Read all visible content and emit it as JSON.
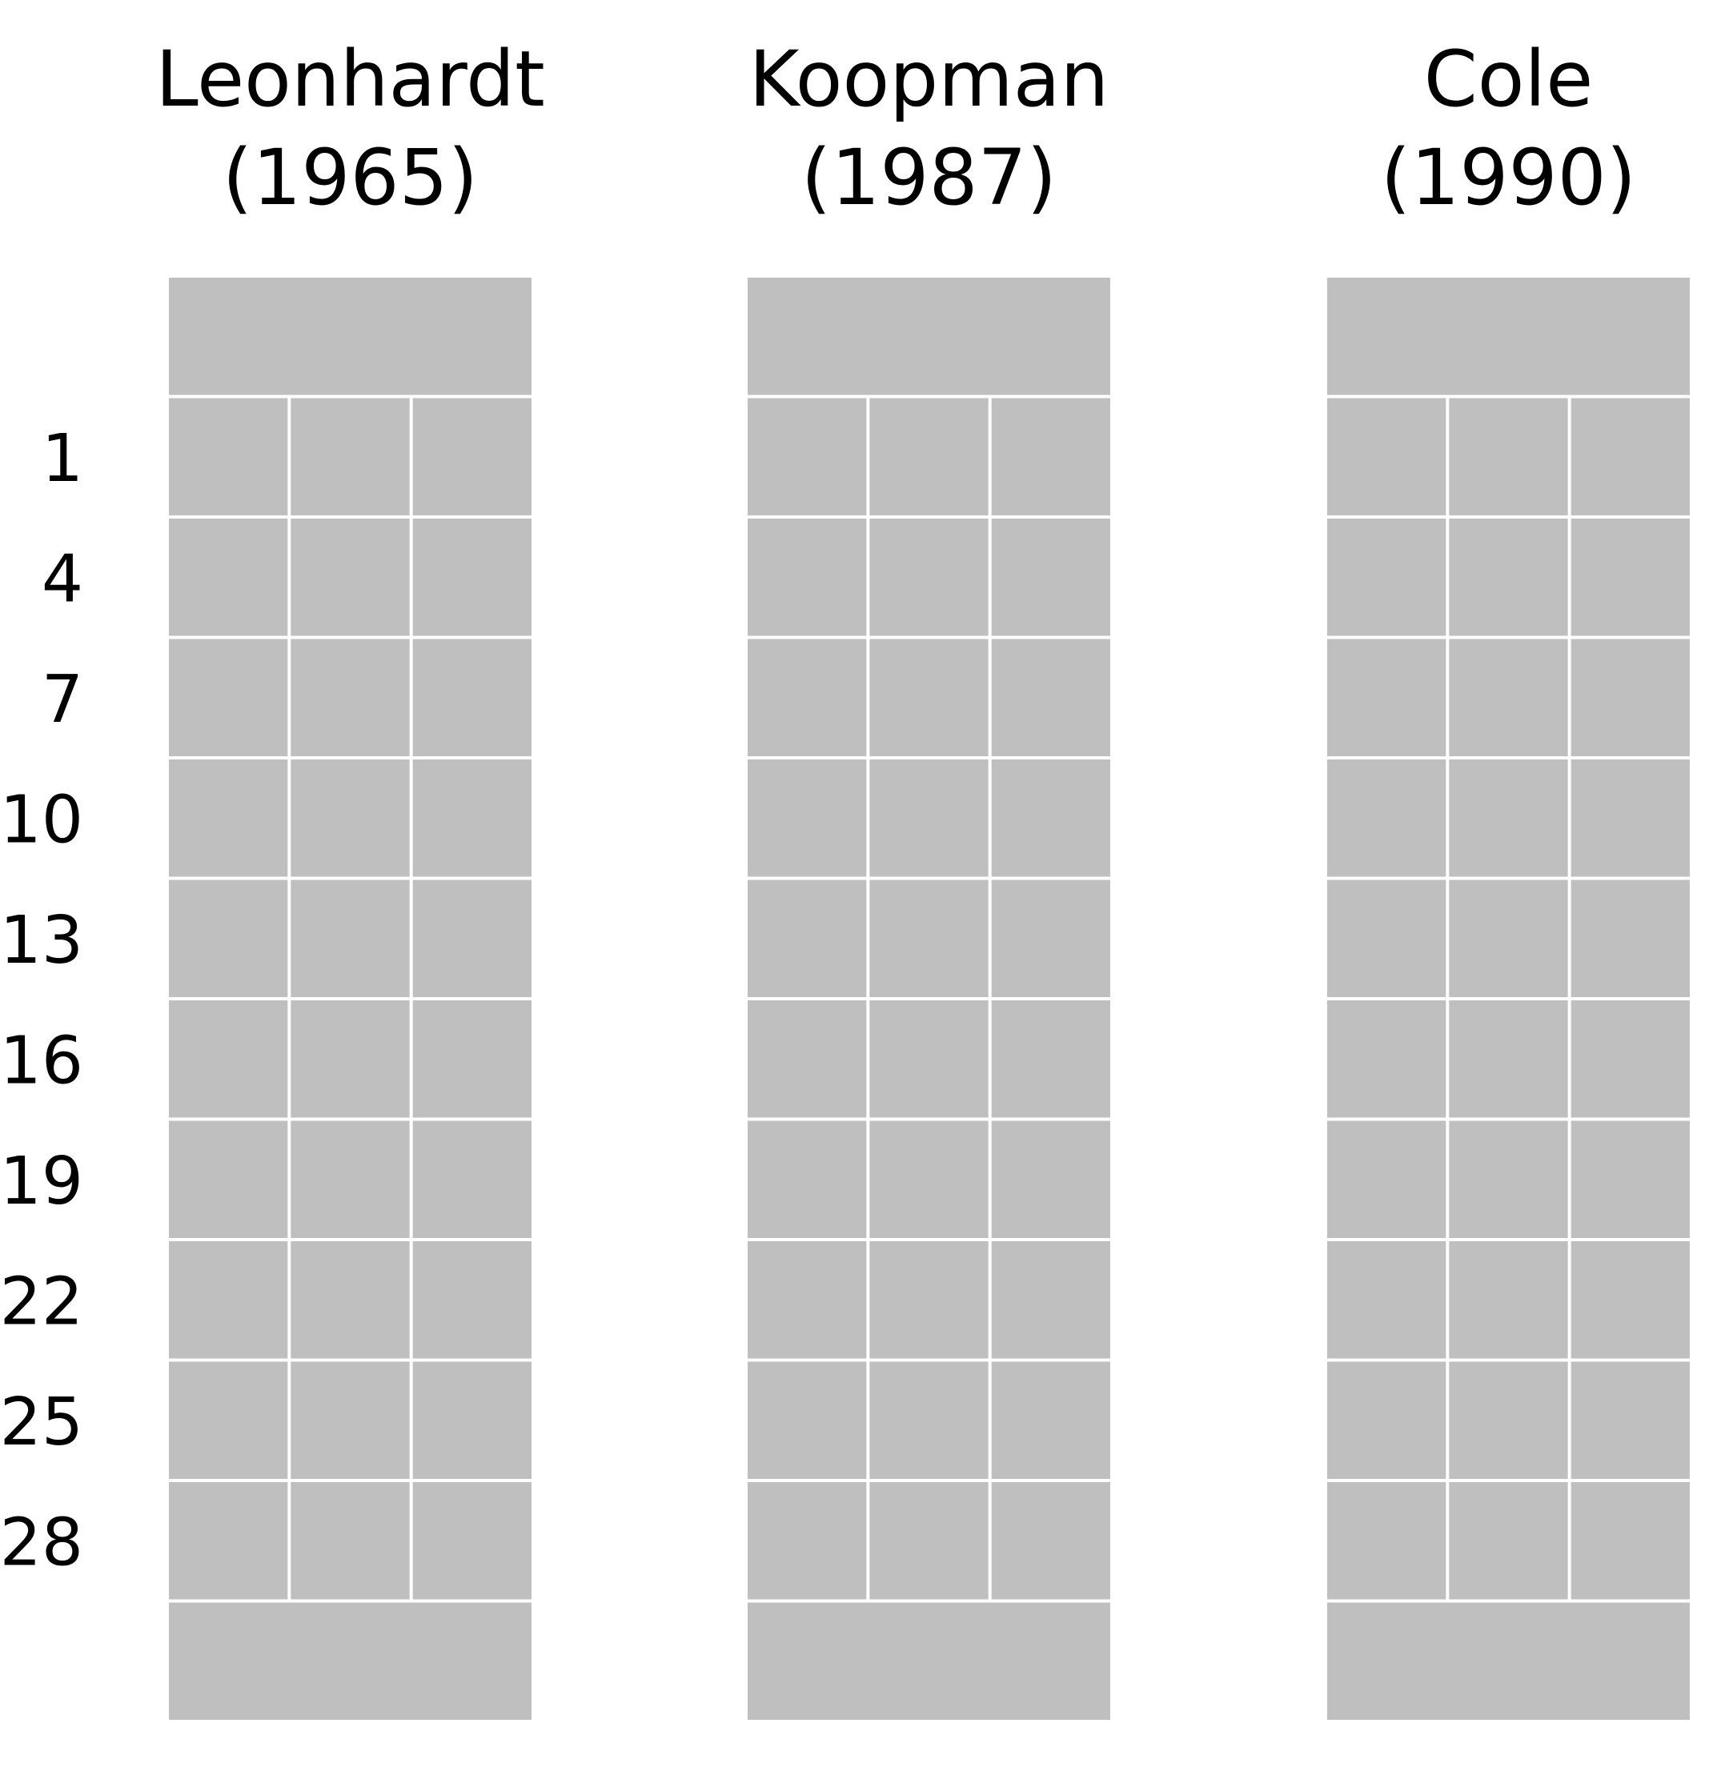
{
  "colors": {
    "background": "#ffffff",
    "cell_fill": "#bfbfbf",
    "cell_line": "#ffffff",
    "text": "#000000"
  },
  "row_labels": [
    "1",
    "4",
    "7",
    "10",
    "13",
    "16",
    "19",
    "22",
    "25",
    "28"
  ],
  "columns": [
    {
      "name": "Leonhardt",
      "year": "(1965)"
    },
    {
      "name": "Koopman",
      "year": "(1987)"
    },
    {
      "name": "Cole",
      "year": "(1990)"
    }
  ],
  "grid": {
    "row_count": 10,
    "cells_per_row": 3,
    "has_top_block": true,
    "has_bottom_block": true
  }
}
